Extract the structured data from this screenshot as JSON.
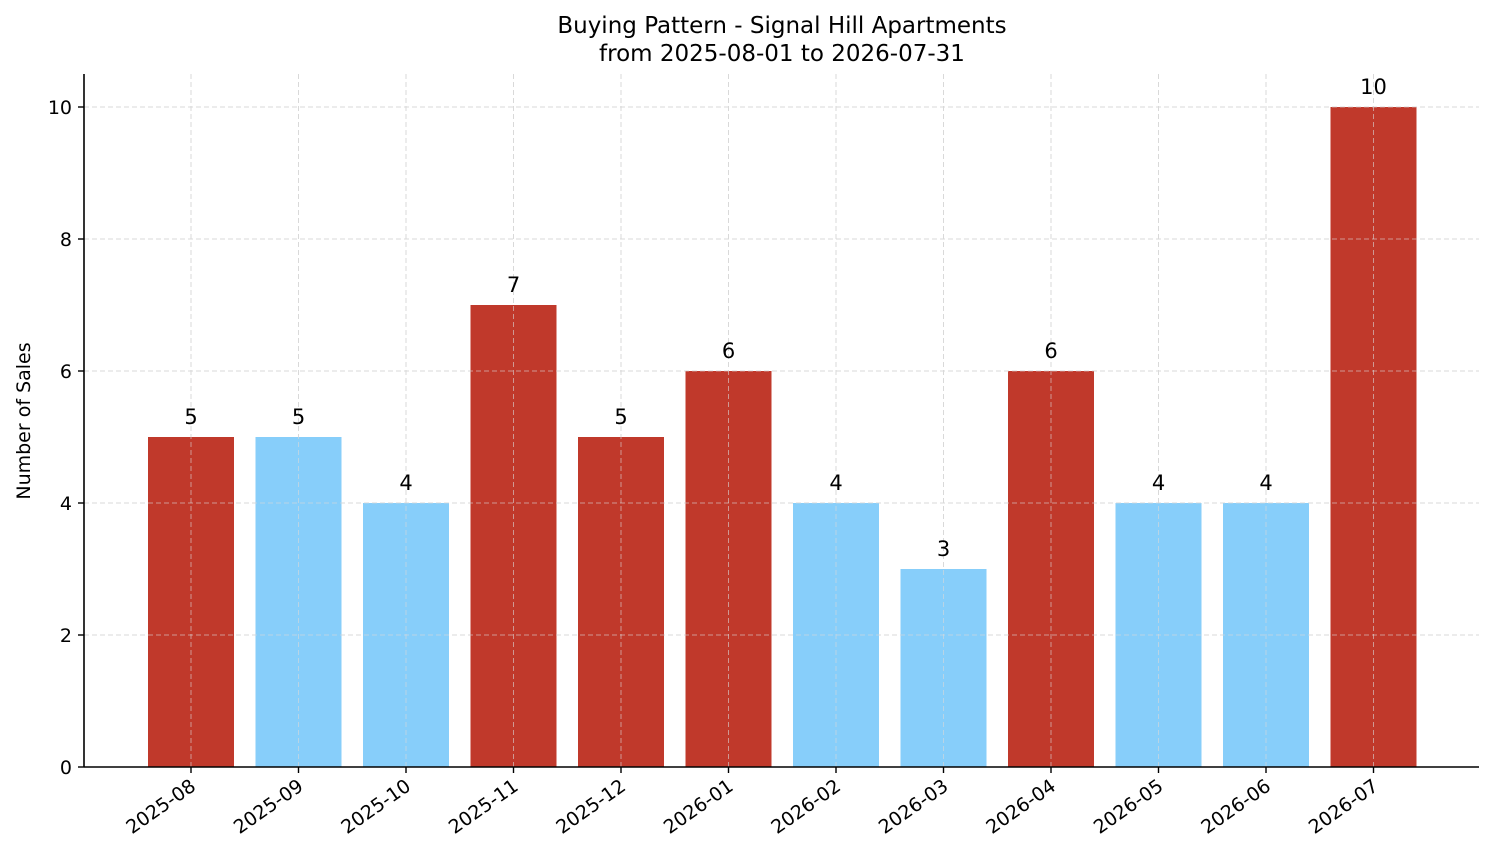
{
  "chart_data": {
    "type": "bar",
    "title": "Buying Pattern - Signal Hill Apartments",
    "subtitle": "from 2025-08-01 to 2026-07-31",
    "xlabel": "",
    "ylabel": "Number of Sales",
    "categories": [
      "2025-08",
      "2025-09",
      "2025-10",
      "2025-11",
      "2025-12",
      "2026-01",
      "2026-02",
      "2026-03",
      "2026-04",
      "2026-05",
      "2026-06",
      "2026-07"
    ],
    "values": [
      5,
      5,
      4,
      7,
      5,
      6,
      4,
      3,
      6,
      4,
      4,
      10
    ],
    "bar_colors": [
      "#c0392b",
      "#87cefa",
      "#87cefa",
      "#c0392b",
      "#c0392b",
      "#c0392b",
      "#87cefa",
      "#87cefa",
      "#c0392b",
      "#87cefa",
      "#87cefa",
      "#c0392b"
    ],
    "ylim": [
      0,
      10.5
    ],
    "yticks": [
      0,
      2,
      4,
      6,
      8,
      10
    ],
    "grid": true,
    "legend": "none"
  }
}
